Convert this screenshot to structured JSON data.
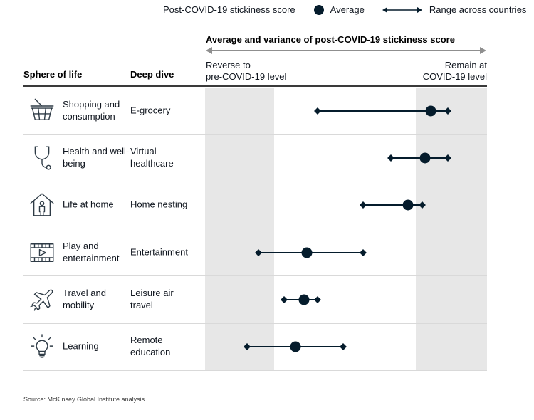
{
  "accent_color": "#051c2c",
  "band_color": "#e7e7e7",
  "legend": {
    "title": "Post-COVID-19 stickiness score",
    "average_label": "Average",
    "range_label": "Range across countries"
  },
  "table": {
    "sphere_header": "Sphere of life",
    "deep_dive_header": "Deep dive"
  },
  "chart_data": {
    "type": "dumbbell",
    "title": "Average and variance of post-COVID-19 stickiness score",
    "axis": {
      "min": 0,
      "max": 100,
      "left_label": "Reverse to\npre-COVID-19 level",
      "right_label": "Remain at\nCOVID-19 level"
    },
    "shaded_bands": [
      {
        "start": 0,
        "end": 24.5
      },
      {
        "start": 74.7,
        "end": 100
      }
    ],
    "rows": [
      {
        "sphere": "Shopping and consumption",
        "deep_dive": "E-grocery",
        "icon": "shopping-basket-icon",
        "range_min": 40,
        "range_max": 86,
        "average": 80
      },
      {
        "sphere": "Health and well-being",
        "deep_dive": "Virtual healthcare",
        "icon": "stethoscope-icon",
        "range_min": 66,
        "range_max": 86,
        "average": 78
      },
      {
        "sphere": "Life at home",
        "deep_dive": "Home nesting",
        "icon": "house-person-icon",
        "range_min": 56,
        "range_max": 77,
        "average": 72
      },
      {
        "sphere": "Play and entertainment",
        "deep_dive": "Entertainment",
        "icon": "film-play-icon",
        "range_min": 19,
        "range_max": 56,
        "average": 36
      },
      {
        "sphere": "Travel and mobility",
        "deep_dive": "Leisure air travel",
        "icon": "airplane-icon",
        "range_min": 28,
        "range_max": 40,
        "average": 35
      },
      {
        "sphere": "Learning",
        "deep_dive": "Remote education",
        "icon": "lightbulb-icon",
        "range_min": 15,
        "range_max": 49,
        "average": 32
      }
    ]
  },
  "source": "Source: McKinsey Global Institute analysis"
}
